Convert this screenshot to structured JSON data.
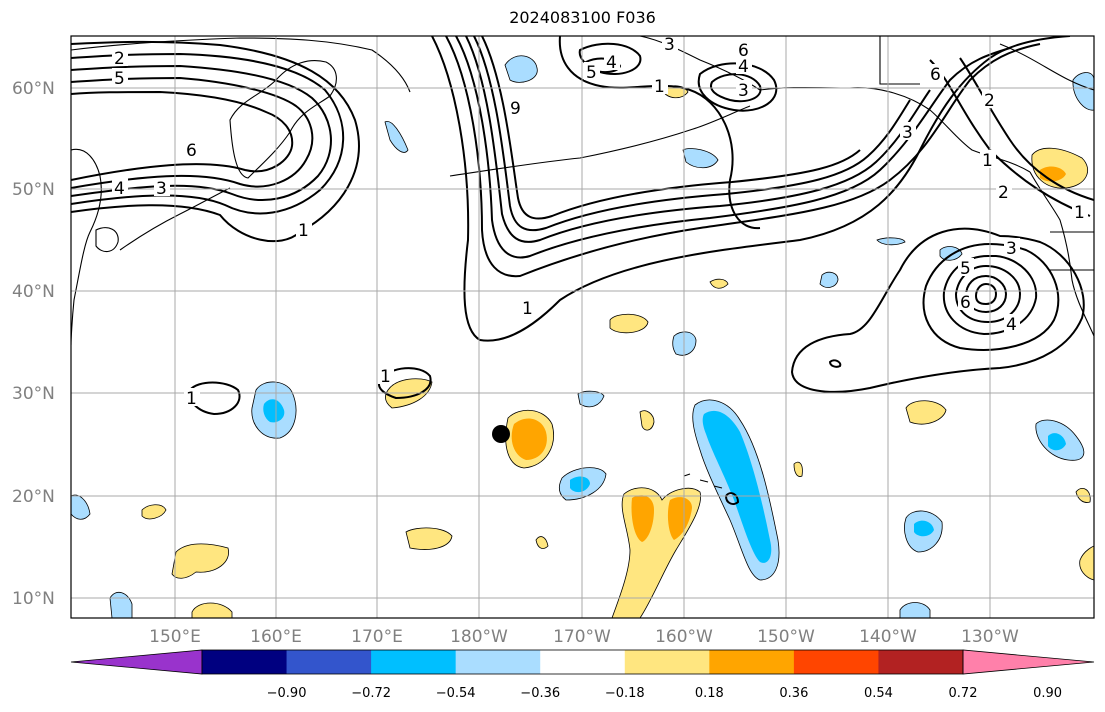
{
  "title": "2024083100 F036",
  "lat_labels": [
    "60°N",
    "50°N",
    "40°N",
    "30°N",
    "20°N",
    "10°N"
  ],
  "lon_labels": [
    "150°E",
    "160°E",
    "170°E",
    "180°W",
    "170°W",
    "160°W",
    "150°W",
    "140°W",
    "130°W"
  ],
  "colorbar": {
    "colors": [
      "#9933cc",
      "#000080",
      "#3355cc",
      "#00bfff",
      "#aaddff",
      "#ffffff",
      "#ffe680",
      "#ffa500",
      "#ff4500",
      "#b22222",
      "#ff80aa"
    ],
    "tick_labels": [
      "−0.90",
      "−0.72",
      "−0.54",
      "−0.36",
      "−0.18",
      "0.18",
      "0.36",
      "0.54",
      "0.72",
      "0.90"
    ]
  },
  "contour_labels": [
    "2",
    "5",
    "6",
    "4",
    "3",
    "1",
    "9",
    "1",
    "1",
    "3",
    "4",
    "6",
    "5",
    "4",
    "3",
    "6",
    "2",
    "3",
    "1",
    "2",
    "1",
    "3",
    "5",
    "6",
    "4",
    "1",
    "1"
  ],
  "marker": {
    "label": "",
    "lat": 26,
    "lon": -178
  }
}
